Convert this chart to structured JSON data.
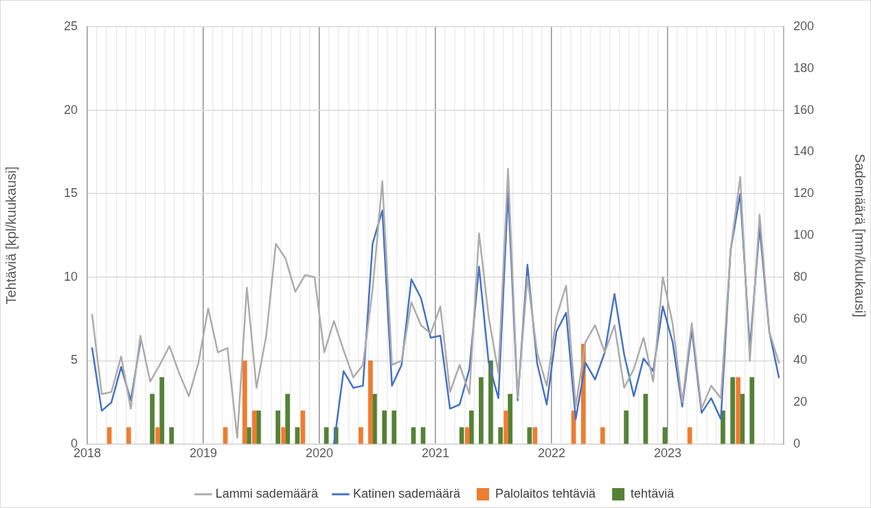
{
  "chart_data": {
    "type": "bar",
    "ylabel": "Tehtäviä [kpl/kuukausi]",
    "y2label": "Sademäärä [mm/kuukausi]",
    "x": [
      2018.042,
      2018.125,
      2018.208,
      2018.292,
      2018.375,
      2018.458,
      2018.542,
      2018.625,
      2018.708,
      2018.792,
      2018.875,
      2018.958,
      2019.042,
      2019.125,
      2019.208,
      2019.292,
      2019.375,
      2019.458,
      2019.542,
      2019.625,
      2019.708,
      2019.792,
      2019.875,
      2019.958,
      2020.042,
      2020.125,
      2020.208,
      2020.292,
      2020.375,
      2020.458,
      2020.542,
      2020.625,
      2020.708,
      2020.792,
      2020.875,
      2020.958,
      2021.042,
      2021.125,
      2021.208,
      2021.292,
      2021.375,
      2021.458,
      2021.542,
      2021.625,
      2021.708,
      2021.792,
      2021.875,
      2021.958,
      2022.042,
      2022.125,
      2022.208,
      2022.292,
      2022.375,
      2022.458,
      2022.542,
      2022.625,
      2022.708,
      2022.792,
      2022.875,
      2022.958,
      2023.042,
      2023.125,
      2023.208,
      2023.292,
      2023.375,
      2023.458,
      2023.542,
      2023.625,
      2023.708,
      2023.792,
      2023.875,
      2023.958
    ],
    "series": [
      {
        "name": "Palolaitos tehtäviä",
        "color": "#ed7d31",
        "values": [
          null,
          null,
          1,
          null,
          1,
          null,
          null,
          1,
          null,
          null,
          null,
          null,
          null,
          null,
          1,
          null,
          5,
          2,
          null,
          null,
          1,
          null,
          2,
          null,
          null,
          null,
          null,
          null,
          1,
          5,
          null,
          null,
          null,
          null,
          null,
          null,
          null,
          null,
          null,
          1,
          null,
          null,
          null,
          2,
          null,
          null,
          1,
          null,
          null,
          null,
          2,
          6,
          null,
          1,
          null,
          null,
          null,
          null,
          null,
          null,
          null,
          null,
          1,
          null,
          null,
          null,
          null,
          4,
          null,
          null,
          null,
          null
        ]
      },
      {
        "name": "tehtäviä",
        "color": "#548235",
        "values": [
          null,
          null,
          null,
          null,
          null,
          null,
          3,
          4,
          1,
          null,
          null,
          null,
          null,
          null,
          null,
          null,
          1,
          2,
          null,
          2,
          3,
          1,
          null,
          null,
          1,
          1,
          null,
          null,
          null,
          3,
          2,
          2,
          null,
          1,
          1,
          null,
          null,
          null,
          1,
          2,
          4,
          5,
          1,
          3,
          null,
          1,
          null,
          null,
          null,
          null,
          null,
          null,
          null,
          null,
          null,
          2,
          null,
          3,
          null,
          1,
          null,
          null,
          null,
          null,
          null,
          2,
          4,
          3,
          4,
          null,
          null,
          null
        ]
      },
      {
        "name": "Lammi sademäärä",
        "type": "line",
        "axis": "y2",
        "color": "#afabab",
        "values": [
          62,
          24,
          25,
          42,
          17,
          52,
          30,
          38,
          47,
          34,
          23,
          39,
          65,
          44,
          46,
          3,
          75,
          27,
          52,
          96,
          89,
          73,
          81,
          80,
          44,
          59,
          45,
          32,
          38,
          74,
          126,
          38,
          40,
          68,
          57,
          53,
          66,
          25,
          38,
          24,
          101,
          61,
          34,
          132,
          22,
          80,
          44,
          28,
          61,
          76,
          18,
          49,
          57,
          44,
          57,
          27,
          36,
          51,
          30,
          80,
          58,
          20,
          58,
          17,
          28,
          22,
          93,
          128,
          40,
          110,
          54,
          39
        ]
      },
      {
        "name": "Katinen sademäärä",
        "type": "line",
        "axis": "y2",
        "color": "#4472c4",
        "values": [
          46,
          16,
          20,
          37,
          21,
          49,
          null,
          null,
          null,
          null,
          null,
          null,
          null,
          null,
          null,
          null,
          null,
          null,
          null,
          null,
          null,
          null,
          null,
          null,
          null,
          0,
          35,
          27,
          28,
          96,
          112,
          28,
          38,
          79,
          70,
          51,
          52,
          17,
          19,
          36,
          85,
          39,
          22,
          121,
          21,
          86,
          39,
          19,
          54,
          63,
          12,
          39,
          31,
          44,
          72,
          43,
          23,
          41,
          35,
          66,
          49,
          18,
          55,
          15,
          22,
          12,
          93,
          120,
          46,
          104,
          54,
          32
        ]
      }
    ],
    "xlim": [
      2018,
      2024
    ],
    "xticks": [
      2018,
      {
        "value": 2018.083,
        "label": null
      },
      {
        "value": 2018.167,
        "label": null
      },
      {
        "value": 2018.25,
        "label": null
      },
      {
        "value": 2018.333,
        "label": null
      },
      {
        "value": 2018.417,
        "label": null
      },
      {
        "value": 2018.5,
        "label": null
      },
      {
        "value": 2018.583,
        "label": null
      },
      {
        "value": 2018.667,
        "label": null
      },
      {
        "value": 2018.75,
        "label": null
      },
      {
        "value": 2018.833,
        "label": null
      },
      {
        "value": 2018.917,
        "label": null
      },
      2019,
      {
        "value": 2019.083,
        "label": null
      },
      {
        "value": 2019.167,
        "label": null
      },
      {
        "value": 2019.25,
        "label": null
      },
      {
        "value": 2019.333,
        "label": null
      },
      {
        "value": 2019.417,
        "label": null
      },
      {
        "value": 2019.5,
        "label": null
      },
      {
        "value": 2019.583,
        "label": null
      },
      {
        "value": 2019.667,
        "label": null
      },
      {
        "value": 2019.75,
        "label": null
      },
      {
        "value": 2019.833,
        "label": null
      },
      {
        "value": 2019.917,
        "label": null
      },
      2020,
      {
        "value": 2020.083,
        "label": null
      },
      {
        "value": 2020.167,
        "label": null
      },
      {
        "value": 2020.25,
        "label": null
      },
      {
        "value": 2020.333,
        "label": null
      },
      {
        "value": 2020.417,
        "label": null
      },
      {
        "value": 2020.5,
        "label": null
      },
      {
        "value": 2020.583,
        "label": null
      },
      {
        "value": 2020.667,
        "label": null
      },
      {
        "value": 2020.75,
        "label": null
      },
      {
        "value": 2020.833,
        "label": null
      },
      {
        "value": 2020.917,
        "label": null
      },
      2021,
      {
        "value": 2021.083,
        "label": null
      },
      {
        "value": 2021.167,
        "label": null
      },
      {
        "value": 2021.25,
        "label": null
      },
      {
        "value": 2021.333,
        "label": null
      },
      {
        "value": 2021.417,
        "label": null
      },
      {
        "value": 2021.5,
        "label": null
      },
      {
        "value": 2021.583,
        "label": null
      },
      {
        "value": 2021.667,
        "label": null
      },
      {
        "value": 2021.75,
        "label": null
      },
      {
        "value": 2021.833,
        "label": null
      },
      {
        "value": 2021.917,
        "label": null
      },
      2022,
      {
        "value": 2022.083,
        "label": null
      },
      {
        "value": 2022.167,
        "label": null
      },
      {
        "value": 2022.25,
        "label": null
      },
      {
        "value": 2022.333,
        "label": null
      },
      {
        "value": 2022.417,
        "label": null
      },
      {
        "value": 2022.5,
        "label": null
      },
      {
        "value": 2022.583,
        "label": null
      },
      {
        "value": 2022.667,
        "label": null
      },
      {
        "value": 2022.75,
        "label": null
      },
      {
        "value": 2022.833,
        "label": null
      },
      {
        "value": 2022.917,
        "label": null
      },
      2023,
      {
        "value": 2023.083,
        "label": null
      },
      {
        "value": 2023.167,
        "label": null
      },
      {
        "value": 2023.25,
        "label": null
      },
      {
        "value": 2023.333,
        "label": null
      },
      {
        "value": 2023.417,
        "label": null
      },
      {
        "value": 2023.5,
        "label": null
      },
      {
        "value": 2023.583,
        "label": null
      },
      {
        "value": 2023.667,
        "label": null
      },
      {
        "value": 2023.75,
        "label": null
      },
      {
        "value": 2023.833,
        "label": null
      },
      {
        "value": 2023.917,
        "label": null
      }
    ],
    "ylim": [
      0,
      25
    ],
    "yticks": [
      0,
      5,
      10,
      15,
      20,
      25
    ],
    "y2lim": [
      0,
      200
    ],
    "y2ticks": [
      0,
      20,
      40,
      60,
      80,
      100,
      120,
      140,
      160,
      180,
      200
    ],
    "grid": true,
    "legend": "bottom",
    "marker": "none"
  }
}
